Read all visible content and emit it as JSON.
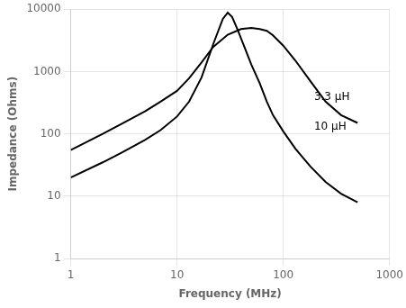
{
  "chart_data": {
    "type": "line",
    "xlabel": "Frequency (MHz)",
    "ylabel": "Impedance (Ohms)",
    "log": true,
    "grid": true,
    "xlim": [
      1,
      1000
    ],
    "ylim": [
      1,
      10000
    ],
    "xticks": [
      1,
      10,
      100,
      1000
    ],
    "yticks": [
      1,
      10,
      100,
      1000,
      10000
    ],
    "series": [
      {
        "color": "#000000",
        "x": [
          1,
          2,
          3,
          5,
          7,
          10,
          13,
          17,
          22,
          27,
          30,
          33,
          37,
          43,
          50,
          60,
          70,
          80,
          100,
          130,
          180,
          250,
          350,
          500
        ],
        "values": [
          20,
          35,
          50,
          80,
          115,
          190,
          330,
          800,
          2800,
          7000,
          8800,
          7500,
          4800,
          2500,
          1300,
          650,
          330,
          200,
          110,
          58,
          30,
          17,
          11,
          8
        ]
      },
      {
        "color": "#000000",
        "x": [
          1,
          2,
          3,
          5,
          7,
          10,
          13,
          17,
          22,
          30,
          40,
          50,
          60,
          70,
          80,
          100,
          130,
          180,
          250,
          350,
          500
        ],
        "values": [
          55,
          100,
          145,
          230,
          330,
          490,
          780,
          1400,
          2500,
          3900,
          4800,
          5000,
          4800,
          4500,
          3800,
          2600,
          1500,
          700,
          330,
          200,
          150
        ]
      }
    ],
    "annotations": [
      {
        "text": "3.3 μH",
        "x": 195,
        "y": 320
      },
      {
        "text": "10 μH",
        "x": 195,
        "y": 105
      }
    ]
  }
}
